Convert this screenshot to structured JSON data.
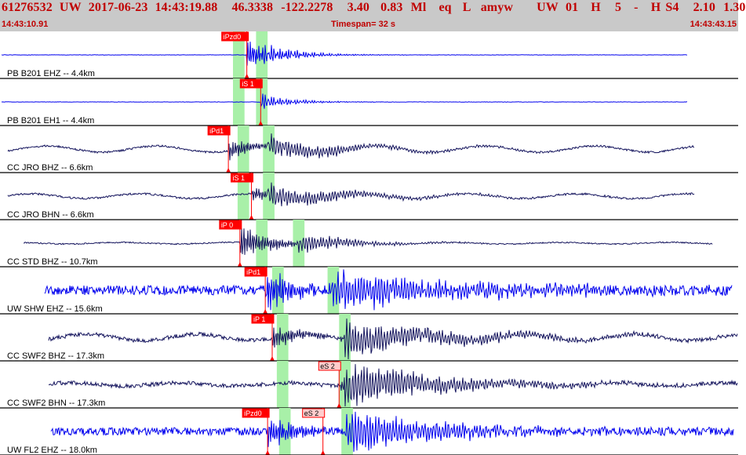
{
  "header": {
    "event_id": "61276532",
    "network": "UW",
    "date": "2017-06-23",
    "time": "14:43:19.88",
    "lat": "46.3338",
    "lon": "-122.2278",
    "depth": "3.40",
    "magnitude": "0.83",
    "mag_type": "Ml",
    "event_type": "eq",
    "flag": "L",
    "analyst": "amyw",
    "source": "UW",
    "version": "01",
    "quality": "H",
    "count": "5",
    "dash": "-",
    "gap": "H",
    "s_code": "S4",
    "v1": "2.10",
    "v2": "1.30"
  },
  "time_start": "14:43:10.91",
  "time_end": "14:43:43.15",
  "timespan_label": "Timespan=  32 s",
  "colors": {
    "header_text": "#c00000",
    "header_bg": "#c9c9c9",
    "blue_trace": "#0000ee",
    "navy_trace": "#15155e",
    "pick_box": "#ff0000",
    "pick_box_emergent": "#ffcccc",
    "window": "#a8f0a8",
    "divider": "#000000"
  },
  "chart_data": {
    "type": "seismogram",
    "time_axis": {
      "start": "14:43:10.91",
      "end": "14:43:43.15",
      "span_s": 32
    },
    "traces": [
      {
        "label": "PB B201 EHZ -- 4.4km",
        "color": "blue",
        "picks": [
          {
            "label": "iPzd0",
            "t": 10.7,
            "style": "filled"
          }
        ],
        "windows": [
          [
            10.1,
            10.6
          ],
          [
            11.1,
            11.6
          ]
        ]
      },
      {
        "label": "PB B201 EH1 -- 4.4km",
        "color": "blue",
        "picks": [
          {
            "label": "iS 1",
            "t": 11.3,
            "style": "filled"
          }
        ],
        "windows": [
          [
            10.1,
            10.6
          ],
          [
            11.1,
            11.6
          ]
        ]
      },
      {
        "label": "CC JRO BHZ -- 6.6km",
        "color": "navy",
        "picks": [
          {
            "label": "iPd1",
            "t": 9.9,
            "style": "filled"
          }
        ],
        "windows": [
          [
            10.3,
            10.8
          ],
          [
            11.4,
            11.9
          ]
        ]
      },
      {
        "label": "CC JRO BHN -- 6.6km",
        "color": "navy",
        "picks": [
          {
            "label": "iS 1",
            "t": 10.9,
            "style": "filled"
          }
        ],
        "windows": [
          [
            10.3,
            10.8
          ],
          [
            11.4,
            11.9
          ]
        ]
      },
      {
        "label": "CC STD BHZ -- 10.7km",
        "color": "navy",
        "picks": [
          {
            "label": "iP 0",
            "t": 10.4,
            "style": "filled"
          }
        ],
        "windows": [
          [
            11.1,
            11.6
          ],
          [
            12.7,
            13.2
          ]
        ]
      },
      {
        "label": "UW SHW EHZ -- 15.6km",
        "color": "blue",
        "picks": [
          {
            "label": "iPd1",
            "t": 11.5,
            "style": "filled"
          }
        ],
        "windows": [
          [
            11.8,
            12.3
          ],
          [
            14.2,
            14.7
          ]
        ]
      },
      {
        "label": "CC SWF2 BHZ -- 17.3km",
        "color": "navy",
        "picks": [
          {
            "label": "iP 1",
            "t": 11.8,
            "style": "filled"
          }
        ],
        "windows": [
          [
            12.0,
            12.5
          ],
          [
            14.7,
            15.2
          ]
        ]
      },
      {
        "label": "CC SWF2 BHN -- 17.3km",
        "color": "navy",
        "picks": [
          {
            "label": "eS 2",
            "t": 14.7,
            "style": "outline"
          }
        ],
        "windows": [
          [
            12.0,
            12.5
          ],
          [
            14.7,
            15.2
          ]
        ]
      },
      {
        "label": "UW FL2 EHZ -- 18.0km",
        "color": "blue",
        "picks": [
          {
            "label": "iPzd0",
            "t": 11.6,
            "style": "filled"
          },
          {
            "label": "eS 2",
            "t": 14.0,
            "style": "outline"
          }
        ],
        "windows": [
          [
            12.1,
            12.6
          ],
          [
            14.8,
            15.3
          ]
        ]
      }
    ]
  }
}
